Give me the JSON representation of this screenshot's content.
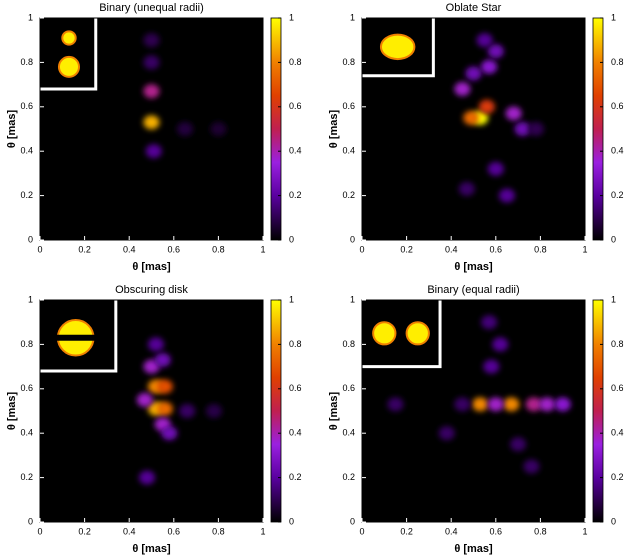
{
  "chart_data": [
    {
      "type": "heatmap",
      "title": "Binary (unequal radii)",
      "xlabel": "θ [mas]",
      "ylabel": "θ [mas]",
      "xlim": [
        0,
        1
      ],
      "ylim": [
        0,
        1
      ],
      "xticks": [
        0,
        0.2,
        0.4,
        0.6,
        0.8,
        1
      ],
      "yticks": [
        0,
        0.2,
        0.4,
        0.6,
        0.8,
        1
      ],
      "colorbar_lim": [
        0,
        1
      ],
      "colorbar_ticks": [
        0,
        0.2,
        0.4,
        0.6,
        0.8,
        1
      ],
      "points": [
        {
          "x": 0.5,
          "y": 0.67,
          "value": 0.35
        },
        {
          "x": 0.5,
          "y": 0.53,
          "value": 0.7
        },
        {
          "x": 0.51,
          "y": 0.4,
          "value": 0.15
        },
        {
          "x": 0.5,
          "y": 0.9,
          "value": 0.08
        },
        {
          "x": 0.5,
          "y": 0.8,
          "value": 0.1
        },
        {
          "x": 0.65,
          "y": 0.5,
          "value": 0.06
        },
        {
          "x": 0.8,
          "y": 0.5,
          "value": 0.05
        }
      ]
    },
    {
      "type": "heatmap",
      "title": "Oblate Star",
      "xlabel": "θ [mas]",
      "ylabel": "θ [mas]",
      "xlim": [
        0,
        1
      ],
      "ylim": [
        0,
        1
      ],
      "xticks": [
        0,
        0.2,
        0.4,
        0.6,
        0.8,
        1
      ],
      "yticks": [
        0,
        0.2,
        0.4,
        0.6,
        0.8,
        1
      ],
      "colorbar_lim": [
        0,
        1
      ],
      "colorbar_ticks": [
        0,
        0.2,
        0.4,
        0.6,
        0.8,
        1
      ],
      "points": [
        {
          "x": 0.53,
          "y": 0.55,
          "value": 0.8
        },
        {
          "x": 0.49,
          "y": 0.55,
          "value": 0.6
        },
        {
          "x": 0.56,
          "y": 0.6,
          "value": 0.5
        },
        {
          "x": 0.45,
          "y": 0.68,
          "value": 0.3
        },
        {
          "x": 0.5,
          "y": 0.75,
          "value": 0.2
        },
        {
          "x": 0.57,
          "y": 0.78,
          "value": 0.25
        },
        {
          "x": 0.6,
          "y": 0.85,
          "value": 0.2
        },
        {
          "x": 0.55,
          "y": 0.9,
          "value": 0.15
        },
        {
          "x": 0.68,
          "y": 0.57,
          "value": 0.3
        },
        {
          "x": 0.72,
          "y": 0.5,
          "value": 0.2
        },
        {
          "x": 0.6,
          "y": 0.32,
          "value": 0.15
        },
        {
          "x": 0.47,
          "y": 0.23,
          "value": 0.1
        },
        {
          "x": 0.65,
          "y": 0.2,
          "value": 0.15
        },
        {
          "x": 0.78,
          "y": 0.5,
          "value": 0.08
        }
      ]
    },
    {
      "type": "heatmap",
      "title": "Obscuring disk",
      "xlabel": "θ [mas]",
      "ylabel": "θ [mas]",
      "xlim": [
        0,
        1
      ],
      "ylim": [
        0,
        1
      ],
      "xticks": [
        0,
        0.2,
        0.4,
        0.6,
        0.8,
        1
      ],
      "yticks": [
        0,
        0.2,
        0.4,
        0.6,
        0.8,
        1
      ],
      "colorbar_lim": [
        0,
        1
      ],
      "colorbar_ticks": [
        0,
        0.2,
        0.4,
        0.6,
        0.8,
        1
      ],
      "points": [
        {
          "x": 0.52,
          "y": 0.61,
          "value": 0.65
        },
        {
          "x": 0.52,
          "y": 0.51,
          "value": 0.7
        },
        {
          "x": 0.56,
          "y": 0.61,
          "value": 0.55
        },
        {
          "x": 0.56,
          "y": 0.51,
          "value": 0.6
        },
        {
          "x": 0.5,
          "y": 0.7,
          "value": 0.3
        },
        {
          "x": 0.55,
          "y": 0.73,
          "value": 0.2
        },
        {
          "x": 0.55,
          "y": 0.44,
          "value": 0.3
        },
        {
          "x": 0.58,
          "y": 0.4,
          "value": 0.2
        },
        {
          "x": 0.47,
          "y": 0.55,
          "value": 0.3
        },
        {
          "x": 0.52,
          "y": 0.8,
          "value": 0.15
        },
        {
          "x": 0.48,
          "y": 0.2,
          "value": 0.15
        },
        {
          "x": 0.66,
          "y": 0.5,
          "value": 0.1
        },
        {
          "x": 0.78,
          "y": 0.5,
          "value": 0.07
        }
      ]
    },
    {
      "type": "heatmap",
      "title": "Binary (equal radii)",
      "xlabel": "θ [mas]",
      "ylabel": "θ [mas]",
      "xlim": [
        0,
        1
      ],
      "ylim": [
        0,
        1
      ],
      "xticks": [
        0,
        0.2,
        0.4,
        0.6,
        0.8,
        1
      ],
      "yticks": [
        0,
        0.2,
        0.4,
        0.6,
        0.8,
        1
      ],
      "colorbar_lim": [
        0,
        1
      ],
      "colorbar_ticks": [
        0,
        0.2,
        0.4,
        0.6,
        0.8,
        1
      ],
      "points": [
        {
          "x": 0.53,
          "y": 0.53,
          "value": 0.65
        },
        {
          "x": 0.67,
          "y": 0.53,
          "value": 0.65
        },
        {
          "x": 0.6,
          "y": 0.53,
          "value": 0.3
        },
        {
          "x": 0.77,
          "y": 0.53,
          "value": 0.35
        },
        {
          "x": 0.83,
          "y": 0.53,
          "value": 0.3
        },
        {
          "x": 0.9,
          "y": 0.53,
          "value": 0.25
        },
        {
          "x": 0.58,
          "y": 0.7,
          "value": 0.15
        },
        {
          "x": 0.62,
          "y": 0.8,
          "value": 0.15
        },
        {
          "x": 0.45,
          "y": 0.53,
          "value": 0.1
        },
        {
          "x": 0.15,
          "y": 0.53,
          "value": 0.1
        },
        {
          "x": 0.38,
          "y": 0.4,
          "value": 0.1
        },
        {
          "x": 0.7,
          "y": 0.35,
          "value": 0.1
        },
        {
          "x": 0.76,
          "y": 0.25,
          "value": 0.1
        },
        {
          "x": 0.57,
          "y": 0.9,
          "value": 0.12
        }
      ]
    }
  ]
}
